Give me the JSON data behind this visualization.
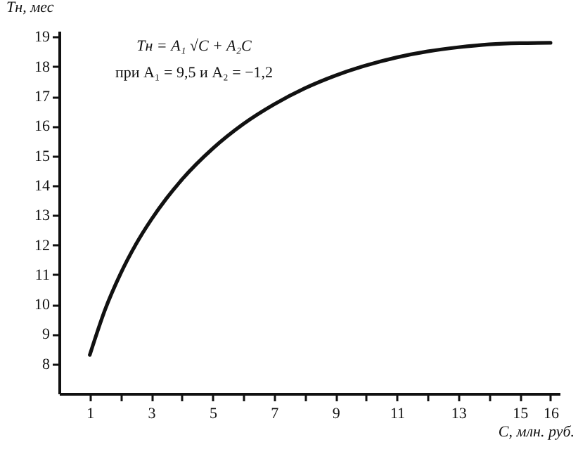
{
  "chart_data": {
    "type": "line",
    "xlabel": "C, млн. руб.",
    "ylabel": "Tн, мес",
    "annotations": [
      "Tн = A₁ √C + A₂C",
      "при A₁ = 9,5 и A₂ = −1,2"
    ],
    "x": [
      1,
      1.5,
      2,
      2.5,
      3,
      3.5,
      4,
      5,
      6,
      7,
      8,
      9,
      10,
      11,
      12,
      13,
      14,
      15,
      16
    ],
    "series": [
      {
        "color": "#111111",
        "values": [
          8.3,
          9.83,
          11.03,
          12.02,
          12.85,
          13.57,
          14.2,
          15.24,
          16.07,
          16.73,
          17.27,
          17.7,
          18.04,
          18.31,
          18.51,
          18.65,
          18.75,
          18.79,
          18.8
        ]
      }
    ],
    "xlim": [
      0,
      16.3
    ],
    "ylim": [
      7,
      19.2
    ],
    "xticks": [
      1,
      {
        "value": 2,
        "label": null
      },
      3,
      {
        "value": 4,
        "label": null
      },
      5,
      {
        "value": 6,
        "label": null
      },
      7,
      {
        "value": 8,
        "label": null
      },
      9,
      {
        "value": 10,
        "label": null
      },
      11,
      {
        "value": 12,
        "label": null
      },
      13,
      {
        "value": 14,
        "label": null
      },
      15,
      16
    ],
    "yticks": [
      8,
      9,
      10,
      11,
      12,
      13,
      14,
      15,
      16,
      17,
      18,
      19
    ],
    "grid": false,
    "marker": "none",
    "line_style": "solid"
  }
}
